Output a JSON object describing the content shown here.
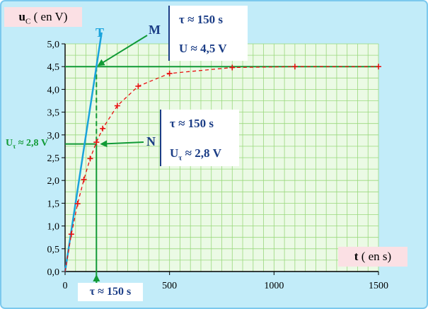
{
  "chart_data": {
    "type": "scatter",
    "xlabel_var": "t",
    "xlabel_unit": "( en s)",
    "ylabel_var": "u",
    "ylabel_sub": "C",
    "ylabel_unit": "( en V)",
    "xlim": [
      0,
      1500
    ],
    "ylim": [
      0,
      5
    ],
    "x_ticks": [
      0,
      500,
      1000,
      1500
    ],
    "x_tick_labels": [
      "0",
      "500",
      "1000",
      "1500"
    ],
    "y_ticks": [
      0,
      0.5,
      1,
      1.5,
      2,
      2.5,
      3,
      3.5,
      4,
      4.5,
      5
    ],
    "y_tick_labels": [
      "0,0",
      "0,5",
      "1,0",
      "1,5",
      "2,0",
      "2,5",
      "3,0",
      "3,5",
      "4,0",
      "4,5",
      "5,0"
    ],
    "grid": true,
    "series": [
      {
        "x": [
          0,
          30,
          60,
          90,
          120,
          150,
          180,
          250,
          350,
          500,
          800,
          1100,
          1500
        ],
        "y": [
          0,
          0.82,
          1.49,
          2.02,
          2.48,
          2.84,
          3.14,
          3.64,
          4.07,
          4.35,
          4.48,
          4.5,
          4.5
        ],
        "color": "#e81010",
        "marker": "+",
        "line_style": "dashed"
      }
    ],
    "asymptote": {
      "y": 4.5,
      "color": "#119a36"
    },
    "tangent": {
      "label": "T",
      "x": [
        0,
        175
      ],
      "y": [
        0,
        5.25
      ],
      "color": "#1aa3dc"
    },
    "tau_marker": {
      "x": 150,
      "y": 2.8,
      "color": "#119a36"
    },
    "annotations": {
      "point_m": {
        "label": "M",
        "line1": "τ ≈ 150 s",
        "line2": "U ≈ 4,5 V"
      },
      "point_n": {
        "label": "N",
        "line1": "τ ≈ 150 s",
        "line2_prefix": "U",
        "line2_sub": "τ",
        "line2_suffix": " ≈ 2,8 V"
      },
      "u_tau": {
        "prefix": "U",
        "sub": "τ",
        "suffix": " ≈ 2,8 V"
      },
      "tau": "τ ≈ 150 s"
    },
    "colors": {
      "background": "#c2ecf9",
      "plot_bg": "#ebfae5",
      "grid": "#9ad87d",
      "text_blue": "#1b3d86",
      "label_box": "#fbe0e4",
      "frame_border": "#7cc9ee"
    }
  }
}
